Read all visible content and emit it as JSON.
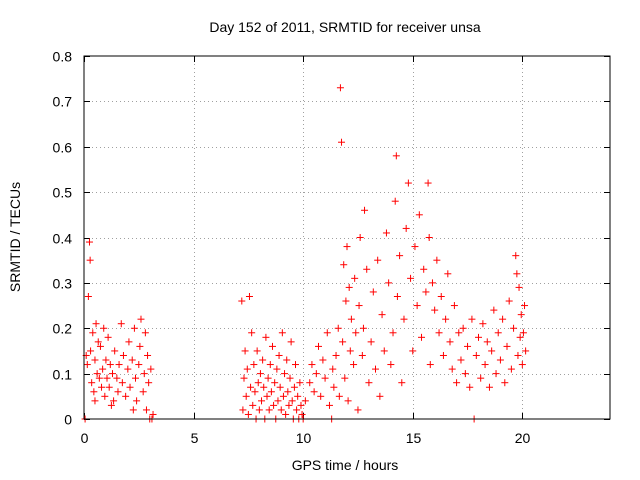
{
  "chart_data": {
    "type": "scatter",
    "title": "Day 152 of 2011, SRMTID for receiver unsa",
    "xlabel": "GPS time / hours",
    "ylabel": "SRMTID / TECUs",
    "xlim": [
      0,
      24
    ],
    "ylim": [
      0,
      0.8
    ],
    "xticks": [
      0,
      5,
      10,
      15,
      20
    ],
    "xtick_labels": [
      "0",
      "5",
      "10",
      "15",
      "20"
    ],
    "yticks": [
      0,
      0.1,
      0.2,
      0.3,
      0.4,
      0.5,
      0.6,
      0.7,
      0.8
    ],
    "ytick_labels": [
      "0",
      "0.1",
      "0.2",
      "0.3",
      "0.4",
      "0.5",
      "0.6",
      "0.7",
      "0.8"
    ],
    "grid": true,
    "marker": "+",
    "color": "#ff0000",
    "series": [
      {
        "name": "unsa",
        "points": [
          [
            0.05,
            0.0
          ],
          [
            0.1,
            0.14
          ],
          [
            0.15,
            0.12
          ],
          [
            0.2,
            0.27
          ],
          [
            0.25,
            0.39
          ],
          [
            0.28,
            0.35
          ],
          [
            0.3,
            0.15
          ],
          [
            0.35,
            0.08
          ],
          [
            0.4,
            0.19
          ],
          [
            0.45,
            0.06
          ],
          [
            0.5,
            0.13
          ],
          [
            0.55,
            0.21
          ],
          [
            0.6,
            0.1
          ],
          [
            0.65,
            0.17
          ],
          [
            0.7,
            0.09
          ],
          [
            0.75,
            0.16
          ],
          [
            0.8,
            0.07
          ],
          [
            0.85,
            0.11
          ],
          [
            0.9,
            0.2
          ],
          [
            0.95,
            0.05
          ],
          [
            1.0,
            0.13
          ],
          [
            1.05,
            0.09
          ],
          [
            1.1,
            0.18
          ],
          [
            1.15,
            0.07
          ],
          [
            1.2,
            0.12
          ],
          [
            1.3,
            0.1
          ],
          [
            1.35,
            0.04
          ],
          [
            1.4,
            0.15
          ],
          [
            1.5,
            0.09
          ],
          [
            1.55,
            0.06
          ],
          [
            1.6,
            0.12
          ],
          [
            1.7,
            0.21
          ],
          [
            1.75,
            0.08
          ],
          [
            1.8,
            0.14
          ],
          [
            1.9,
            0.05
          ],
          [
            2.0,
            0.11
          ],
          [
            2.05,
            0.17
          ],
          [
            2.1,
            0.07
          ],
          [
            2.2,
            0.13
          ],
          [
            2.3,
            0.2
          ],
          [
            2.35,
            0.09
          ],
          [
            2.4,
            0.04
          ],
          [
            2.5,
            0.12
          ],
          [
            2.55,
            0.16
          ],
          [
            2.6,
            0.22
          ],
          [
            2.7,
            0.06
          ],
          [
            2.75,
            0.1
          ],
          [
            2.8,
            0.19
          ],
          [
            2.85,
            0.02
          ],
          [
            2.9,
            0.14
          ],
          [
            2.95,
            0.08
          ],
          [
            3.0,
            0.0
          ],
          [
            3.05,
            0.11
          ],
          [
            3.1,
            0.0
          ],
          [
            3.15,
            0.01
          ],
          [
            0.5,
            0.04
          ],
          [
            1.25,
            0.03
          ],
          [
            2.25,
            0.02
          ],
          [
            7.2,
            0.26
          ],
          [
            7.25,
            0.02
          ],
          [
            7.3,
            0.09
          ],
          [
            7.35,
            0.15
          ],
          [
            7.4,
            0.05
          ],
          [
            7.45,
            0.11
          ],
          [
            7.5,
            0.01
          ],
          [
            7.55,
            0.27
          ],
          [
            7.6,
            0.07
          ],
          [
            7.65,
            0.19
          ],
          [
            7.7,
            0.03
          ],
          [
            7.75,
            0.12
          ],
          [
            7.8,
            0.06
          ],
          [
            7.85,
            0.0
          ],
          [
            7.9,
            0.15
          ],
          [
            7.95,
            0.08
          ],
          [
            8.0,
            0.02
          ],
          [
            8.05,
            0.1
          ],
          [
            8.1,
            0.04
          ],
          [
            8.15,
            0.13
          ],
          [
            8.2,
            0.07
          ],
          [
            8.25,
            0.0
          ],
          [
            8.3,
            0.18
          ],
          [
            8.35,
            0.05
          ],
          [
            8.4,
            0.09
          ],
          [
            8.45,
            0.02
          ],
          [
            8.5,
            0.12
          ],
          [
            8.55,
            0.06
          ],
          [
            8.6,
            0.16
          ],
          [
            8.65,
            0.03
          ],
          [
            8.7,
            0.08
          ],
          [
            8.75,
            0.0
          ],
          [
            8.8,
            0.11
          ],
          [
            8.85,
            0.04
          ],
          [
            8.9,
            0.14
          ],
          [
            8.95,
            0.07
          ],
          [
            9.0,
            0.02
          ],
          [
            9.05,
            0.19
          ],
          [
            9.1,
            0.05
          ],
          [
            9.15,
            0.1
          ],
          [
            9.2,
            0.01
          ],
          [
            9.25,
            0.13
          ],
          [
            9.3,
            0.06
          ],
          [
            9.35,
            0.03
          ],
          [
            9.4,
            0.09
          ],
          [
            9.45,
            0.17
          ],
          [
            9.5,
            0.04
          ],
          [
            9.55,
            0.0
          ],
          [
            9.6,
            0.07
          ],
          [
            9.65,
            0.12
          ],
          [
            9.7,
            0.02
          ],
          [
            9.75,
            0.05
          ],
          [
            9.8,
            0.0
          ],
          [
            9.85,
            0.08
          ],
          [
            9.9,
            0.03
          ],
          [
            9.95,
            0.01
          ],
          [
            10.0,
            0.0
          ],
          [
            10.1,
            0.04
          ],
          [
            10.3,
            0.08
          ],
          [
            10.4,
            0.12
          ],
          [
            10.5,
            0.06
          ],
          [
            10.6,
            0.1
          ],
          [
            10.7,
            0.16
          ],
          [
            10.8,
            0.05
          ],
          [
            10.9,
            0.13
          ],
          [
            11.0,
            0.09
          ],
          [
            11.1,
            0.19
          ],
          [
            11.2,
            0.03
          ],
          [
            11.3,
            0.0
          ],
          [
            11.35,
            0.11
          ],
          [
            11.4,
            0.07
          ],
          [
            11.5,
            0.14
          ],
          [
            11.6,
            0.2
          ],
          [
            11.65,
            0.05
          ],
          [
            11.7,
            0.73
          ],
          [
            11.75,
            0.61
          ],
          [
            11.8,
            0.17
          ],
          [
            11.85,
            0.34
          ],
          [
            11.9,
            0.09
          ],
          [
            11.95,
            0.26
          ],
          [
            12.0,
            0.38
          ],
          [
            12.05,
            0.04
          ],
          [
            12.1,
            0.29
          ],
          [
            12.15,
            0.15
          ],
          [
            12.2,
            0.22
          ],
          [
            12.3,
            0.12
          ],
          [
            12.35,
            0.31
          ],
          [
            12.4,
            0.19
          ],
          [
            12.5,
            0.02
          ],
          [
            12.55,
            0.25
          ],
          [
            12.6,
            0.4
          ],
          [
            12.7,
            0.14
          ],
          [
            12.75,
            0.2
          ],
          [
            12.8,
            0.46
          ],
          [
            12.9,
            0.33
          ],
          [
            13.0,
            0.08
          ],
          [
            13.1,
            0.17
          ],
          [
            13.2,
            0.28
          ],
          [
            13.3,
            0.11
          ],
          [
            13.4,
            0.35
          ],
          [
            13.5,
            0.05
          ],
          [
            13.6,
            0.23
          ],
          [
            13.7,
            0.15
          ],
          [
            13.8,
            0.41
          ],
          [
            13.9,
            0.3
          ],
          [
            14.0,
            0.12
          ],
          [
            14.1,
            0.19
          ],
          [
            14.2,
            0.48
          ],
          [
            14.25,
            0.58
          ],
          [
            14.3,
            0.27
          ],
          [
            14.4,
            0.36
          ],
          [
            14.5,
            0.08
          ],
          [
            14.6,
            0.22
          ],
          [
            14.7,
            0.42
          ],
          [
            14.8,
            0.52
          ],
          [
            14.9,
            0.31
          ],
          [
            15.0,
            0.15
          ],
          [
            15.1,
            0.38
          ],
          [
            15.2,
            0.25
          ],
          [
            15.3,
            0.45
          ],
          [
            15.4,
            0.18
          ],
          [
            15.5,
            0.33
          ],
          [
            15.6,
            0.28
          ],
          [
            15.7,
            0.52
          ],
          [
            15.75,
            0.4
          ],
          [
            15.8,
            0.12
          ],
          [
            15.9,
            0.3
          ],
          [
            16.0,
            0.24
          ],
          [
            16.1,
            0.35
          ],
          [
            16.2,
            0.19
          ],
          [
            16.3,
            0.27
          ],
          [
            16.4,
            0.14
          ],
          [
            16.5,
            0.22
          ],
          [
            16.6,
            0.32
          ],
          [
            16.7,
            0.17
          ],
          [
            16.8,
            0.11
          ],
          [
            16.9,
            0.25
          ],
          [
            17.0,
            0.08
          ],
          [
            17.1,
            0.19
          ],
          [
            17.2,
            0.13
          ],
          [
            17.3,
            0.2
          ],
          [
            17.4,
            0.1
          ],
          [
            17.5,
            0.16
          ],
          [
            17.6,
            0.07
          ],
          [
            17.7,
            0.22
          ],
          [
            17.8,
            0.0
          ],
          [
            17.9,
            0.14
          ],
          [
            18.0,
            0.18
          ],
          [
            18.1,
            0.09
          ],
          [
            18.2,
            0.21
          ],
          [
            18.3,
            0.12
          ],
          [
            18.4,
            0.17
          ],
          [
            18.5,
            0.07
          ],
          [
            18.6,
            0.15
          ],
          [
            18.7,
            0.24
          ],
          [
            18.8,
            0.1
          ],
          [
            18.9,
            0.19
          ],
          [
            19.0,
            0.13
          ],
          [
            19.1,
            0.22
          ],
          [
            19.2,
            0.08
          ],
          [
            19.3,
            0.16
          ],
          [
            19.4,
            0.26
          ],
          [
            19.5,
            0.11
          ],
          [
            19.6,
            0.2
          ],
          [
            19.7,
            0.36
          ],
          [
            19.75,
            0.32
          ],
          [
            19.8,
            0.14
          ],
          [
            19.85,
            0.29
          ],
          [
            19.9,
            0.18
          ],
          [
            19.95,
            0.23
          ],
          [
            20.0,
            0.12
          ],
          [
            20.05,
            0.19
          ],
          [
            20.1,
            0.25
          ],
          [
            20.15,
            0.15
          ]
        ]
      }
    ]
  }
}
